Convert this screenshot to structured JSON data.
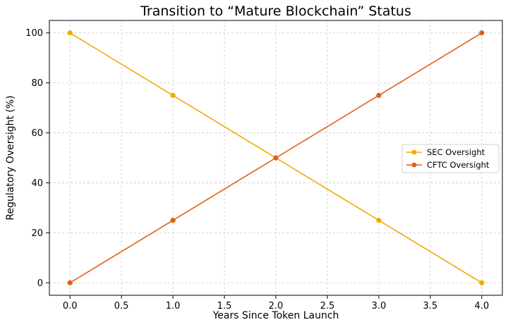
{
  "chart_data": {
    "type": "line",
    "title": "Transition to “Mature Blockchain” Status",
    "xlabel": "Years Since Token Launch",
    "ylabel": "Regulatory Oversight (%)",
    "xlim": [
      -0.2,
      4.2
    ],
    "ylim": [
      -5,
      105
    ],
    "xticks": [
      0.0,
      0.5,
      1.0,
      1.5,
      2.0,
      2.5,
      3.0,
      3.5,
      4.0
    ],
    "xtick_labels": [
      "0.0",
      "0.5",
      "1.0",
      "1.5",
      "2.0",
      "2.5",
      "3.0",
      "3.5",
      "4.0"
    ],
    "yticks": [
      0,
      20,
      40,
      60,
      80,
      100
    ],
    "ytick_labels": [
      "0",
      "20",
      "40",
      "60",
      "80",
      "100"
    ],
    "grid": true,
    "legend_position": "center-right",
    "series": [
      {
        "name": "SEC Oversight",
        "color": "#F2A900",
        "x": [
          0,
          1,
          2,
          3,
          4
        ],
        "y": [
          100,
          75,
          50,
          25,
          0
        ]
      },
      {
        "name": "CFTC Oversight",
        "color": "#E06010",
        "x": [
          0,
          1,
          2,
          3,
          4
        ],
        "y": [
          0,
          25,
          50,
          75,
          100
        ]
      }
    ]
  }
}
